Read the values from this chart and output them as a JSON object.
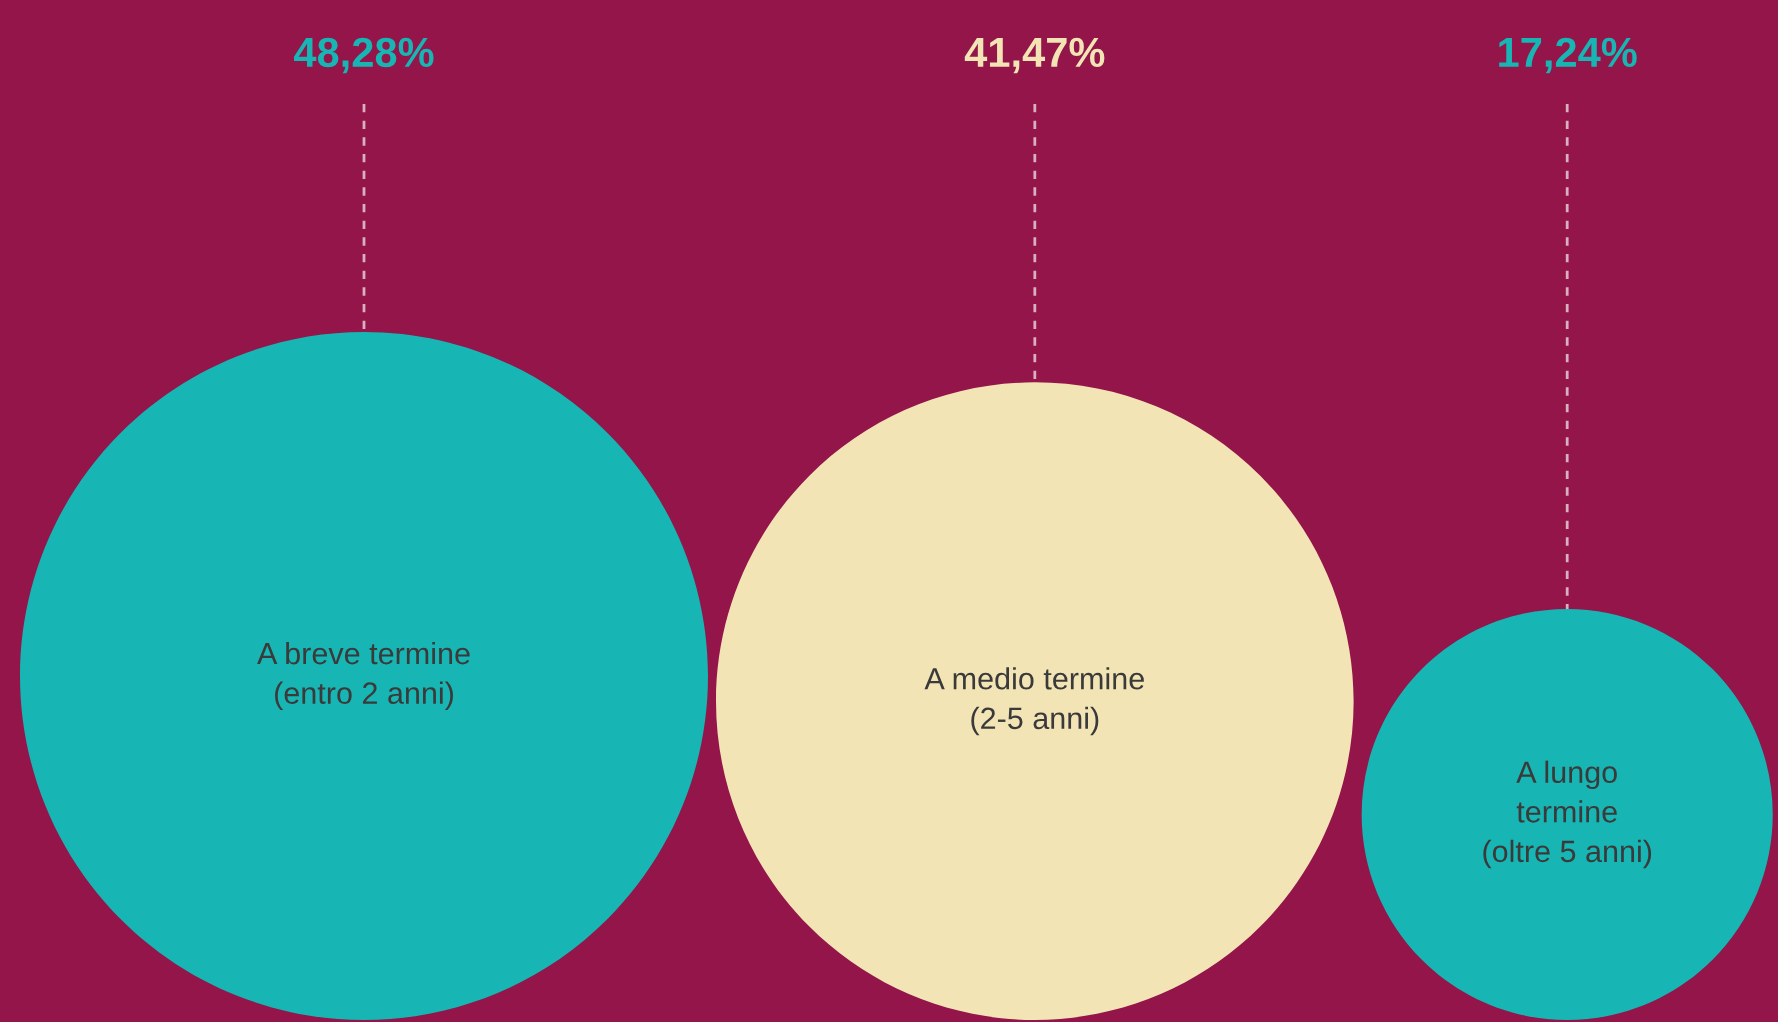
{
  "chart_data": {
    "type": "other",
    "categories": [
      "A breve termine\n(entro 2 anni)",
      "A medio termine\n(2-5 anni)",
      "A lungo\ntermine\n(oltre 5 anni)"
    ],
    "values": [
      48.28,
      41.47,
      17.24
    ],
    "value_labels": [
      "48,28%",
      "41,47%",
      "17,24%"
    ],
    "colors": [
      "#17b5b3",
      "#f3e4b5",
      "#17b5b3"
    ]
  }
}
